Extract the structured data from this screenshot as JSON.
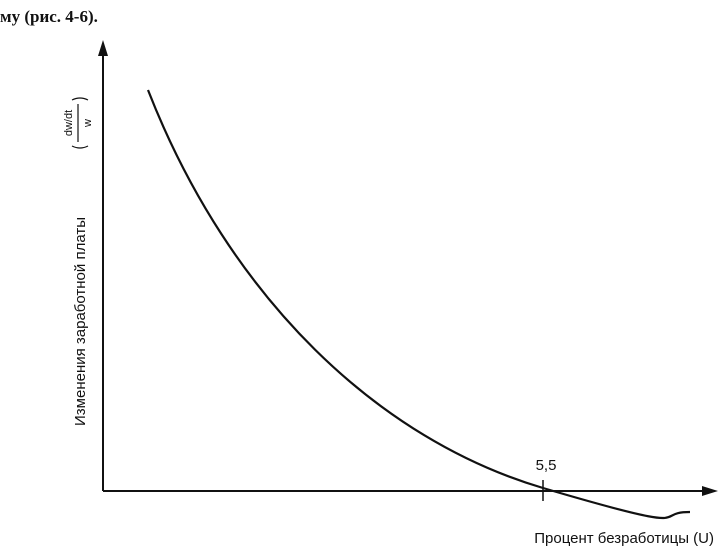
{
  "caption": "му (рис. 4-6).",
  "diagram": {
    "y_axis_label": "Изменения заработной платы",
    "y_axis_fraction": {
      "numerator": "dw/dt",
      "denominator": "w"
    },
    "x_axis_label": "Процент безработицы (U)",
    "tick_label": "5,5"
  }
}
